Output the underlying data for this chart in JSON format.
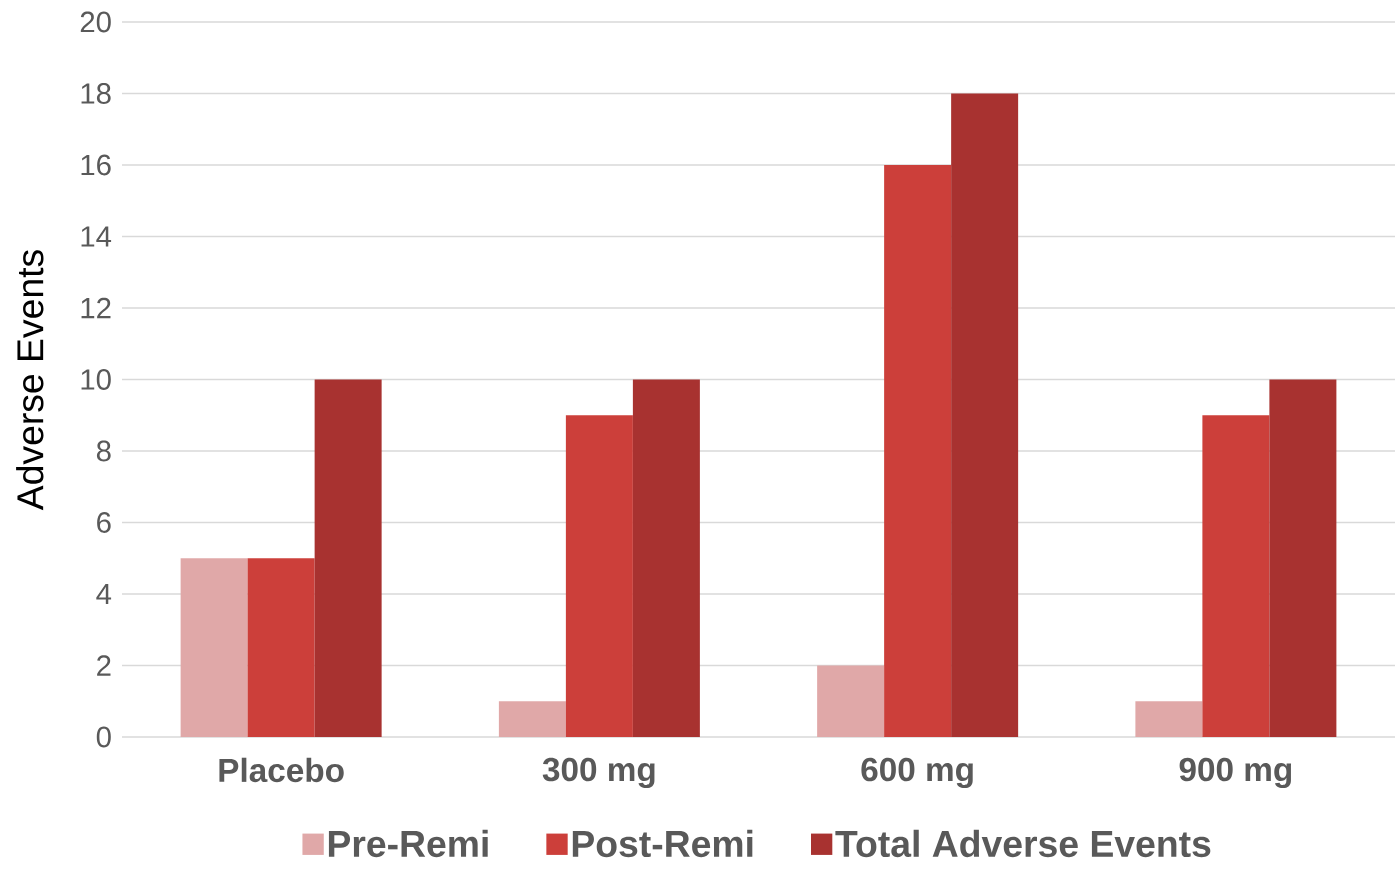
{
  "chart_data": {
    "type": "bar",
    "ylabel": "Adverse Events",
    "categories": [
      "Placebo",
      "300 mg",
      "600 mg",
      "900 mg"
    ],
    "series": [
      {
        "name": "Pre-Remi",
        "color": "#e0a8a8",
        "values": [
          5,
          1,
          2,
          1
        ]
      },
      {
        "name": "Post-Remi",
        "color": "#cc3f3a",
        "values": [
          5,
          9,
          16,
          9
        ]
      },
      {
        "name": "Total Adverse Events",
        "color": "#a83230",
        "values": [
          10,
          10,
          18,
          10
        ]
      }
    ],
    "ylim": [
      0,
      20
    ],
    "yticks": [
      0,
      2,
      4,
      6,
      8,
      10,
      12,
      14,
      16,
      18,
      20
    ],
    "grid": "y",
    "legend": "bottom"
  }
}
